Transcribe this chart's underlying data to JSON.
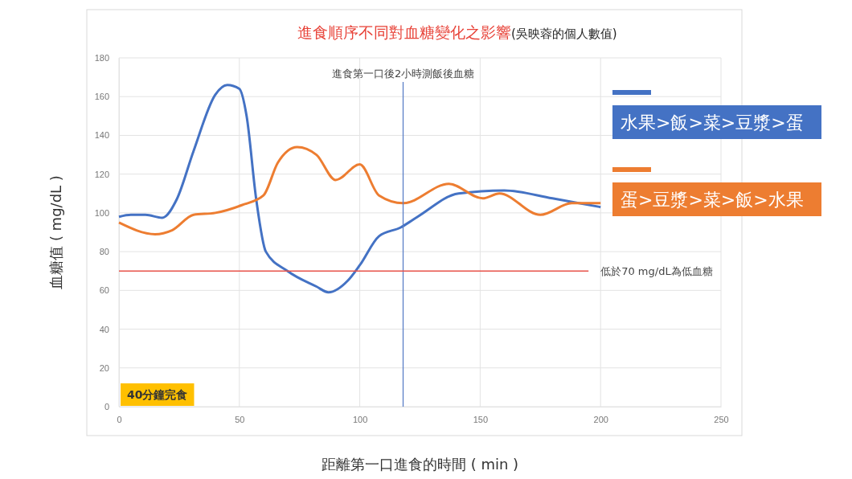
{
  "chart_data": {
    "type": "line",
    "title": "進食順序不同對血糖變化之影響",
    "subtitle": "(吳映蓉的個人數值)",
    "xlabel": "距離第一口進食的時間 ( min )",
    "ylabel": "血糖值 ( mg/dL )",
    "xlim": [
      0,
      250
    ],
    "xticks": [
      0,
      50,
      100,
      150,
      200,
      250
    ],
    "ylim": [
      0,
      180
    ],
    "yticks": [
      0,
      20,
      40,
      60,
      80,
      100,
      120,
      140,
      160,
      180
    ],
    "grid": true,
    "legend": "right",
    "marker": "none",
    "line_style": "solid",
    "series": [
      {
        "name": "水果>飯>菜>豆漿>蛋",
        "color": "#4472c4",
        "x": [
          0,
          5,
          11,
          18,
          24,
          31,
          40,
          45,
          50,
          53,
          57,
          61,
          70,
          82,
          87,
          95,
          100,
          108,
          117,
          124,
          141,
          160,
          180,
          200
        ],
        "values": [
          98,
          99,
          99,
          97.5,
          107,
          132,
          161,
          166,
          164,
          150,
          107,
          80,
          70,
          62,
          59,
          65,
          73,
          88,
          92.5,
          98,
          110,
          111.6,
          107.5,
          103
        ]
      },
      {
        "name": "蛋>豆漿>菜>飯>水果",
        "color": "#ed7d31",
        "x": [
          0,
          15,
          22,
          31,
          40,
          51,
          60,
          66,
          74,
          82,
          90,
          100,
          108,
          118,
          137,
          151,
          158,
          175,
          188,
          200
        ],
        "values": [
          95,
          89,
          91,
          99,
          100,
          104,
          109,
          126,
          134,
          130,
          117,
          125,
          109,
          105,
          115,
          107.5,
          110,
          99,
          105,
          105
        ]
      }
    ],
    "ref_lines": [
      {
        "axis": "x",
        "value": 118,
        "label": "進食第一口後2小時測飯後血糖",
        "color": "#5b7fc7"
      },
      {
        "axis": "y",
        "value": 70,
        "label": "低於70 mg/dL為低血糖",
        "color": "#e8534a"
      }
    ],
    "annotations": [
      "40分鐘完食"
    ]
  }
}
